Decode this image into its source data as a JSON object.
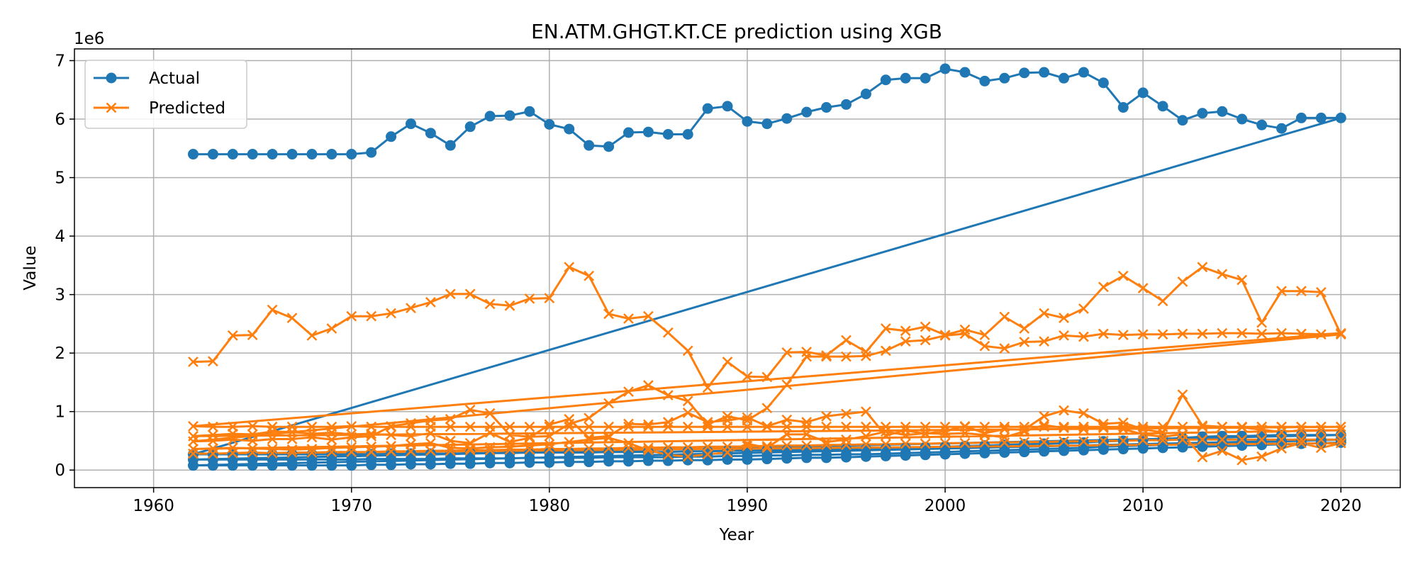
{
  "chart_data": {
    "type": "line",
    "title": "EN.ATM.GHGT.KT.CE prediction using XGB",
    "xlabel": "Year",
    "ylabel": "Value",
    "y_offset_label": "1e6",
    "xlim": [
      1956,
      2023
    ],
    "ylim": [
      -0.3,
      7.2
    ],
    "x_ticks": [
      1960,
      1970,
      1980,
      1990,
      2000,
      2010,
      2020
    ],
    "y_ticks": [
      0,
      1,
      2,
      3,
      4,
      5,
      6,
      7
    ],
    "y_unit_multiplier": 1000000,
    "grid": true,
    "legend_position": "top-left",
    "colors": {
      "actual": "#1f77b4",
      "predicted": "#ff7f0e"
    },
    "legend": [
      {
        "name": "Actual",
        "color": "#1f77b4",
        "marker": "circle"
      },
      {
        "name": "Predicted",
        "color": "#ff7f0e",
        "marker": "x"
      }
    ],
    "x": [
      1962,
      1963,
      1964,
      1965,
      1966,
      1967,
      1968,
      1969,
      1970,
      1971,
      1972,
      1973,
      1974,
      1975,
      1976,
      1977,
      1978,
      1979,
      1980,
      1981,
      1982,
      1983,
      1984,
      1985,
      1986,
      1987,
      1988,
      1989,
      1990,
      1991,
      1992,
      1993,
      1994,
      1995,
      1996,
      1997,
      1998,
      1999,
      2000,
      2001,
      2002,
      2003,
      2004,
      2005,
      2006,
      2007,
      2008,
      2009,
      2010,
      2011,
      2012,
      2013,
      2014,
      2015,
      2016,
      2017,
      2018,
      2019,
      2020
    ],
    "series": [
      {
        "name": "Actual",
        "group": "actual",
        "values": [
          5.4,
          5.4,
          5.4,
          5.4,
          5.4,
          5.4,
          5.4,
          5.4,
          5.4,
          5.43,
          5.7,
          5.92,
          5.76,
          5.55,
          5.87,
          6.05,
          6.06,
          6.13,
          5.91,
          5.83,
          5.55,
          5.53,
          5.77,
          5.78,
          5.74,
          5.74,
          6.18,
          6.22,
          5.96,
          5.92,
          6.01,
          6.12,
          6.2,
          6.25,
          6.43,
          6.67,
          6.7,
          6.7,
          6.86,
          6.8,
          6.65,
          6.7,
          6.79,
          6.8,
          6.7,
          6.8,
          6.62,
          6.2,
          6.45,
          6.22,
          5.98,
          6.1,
          6.13,
          6.0,
          5.9,
          5.84,
          6.02,
          6.02,
          6.02
        ]
      },
      {
        "group": "actual",
        "values": [
          0.27,
          0.27,
          0.27,
          0.27,
          0.27,
          0.27,
          0.27,
          0.27,
          0.27,
          0.27,
          0.28,
          0.28,
          0.28,
          0.28,
          0.29,
          0.29,
          0.29,
          0.3,
          0.3,
          0.3,
          0.3,
          0.31,
          0.31,
          0.31,
          0.31,
          0.32,
          0.32,
          0.33,
          0.33,
          0.34,
          0.34,
          0.35,
          0.35,
          0.36,
          0.36,
          0.37,
          0.38,
          0.39,
          0.4,
          0.41,
          0.42,
          0.43,
          0.44,
          0.45,
          0.46,
          0.47,
          0.49,
          0.5,
          0.52,
          0.53,
          0.55,
          0.57,
          0.58,
          0.58,
          0.59,
          0.6,
          0.6,
          0.6,
          0.6
        ]
      },
      {
        "group": "actual",
        "values": [
          0.18,
          0.18,
          0.18,
          0.18,
          0.18,
          0.18,
          0.18,
          0.18,
          0.18,
          0.19,
          0.19,
          0.19,
          0.19,
          0.2,
          0.2,
          0.2,
          0.2,
          0.21,
          0.21,
          0.21,
          0.21,
          0.22,
          0.22,
          0.22,
          0.22,
          0.23,
          0.23,
          0.24,
          0.24,
          0.25,
          0.25,
          0.26,
          0.26,
          0.27,
          0.27,
          0.28,
          0.29,
          0.3,
          0.31,
          0.32,
          0.33,
          0.34,
          0.35,
          0.36,
          0.37,
          0.38,
          0.4,
          0.41,
          0.42,
          0.43,
          0.44,
          0.45,
          0.46,
          0.47,
          0.48,
          0.49,
          0.5,
          0.51,
          0.52
        ]
      },
      {
        "group": "actual",
        "values": [
          0.08,
          0.08,
          0.08,
          0.08,
          0.08,
          0.08,
          0.08,
          0.08,
          0.08,
          0.09,
          0.09,
          0.1,
          0.1,
          0.11,
          0.11,
          0.12,
          0.12,
          0.13,
          0.13,
          0.14,
          0.14,
          0.15,
          0.15,
          0.16,
          0.16,
          0.17,
          0.17,
          0.18,
          0.18,
          0.19,
          0.2,
          0.21,
          0.21,
          0.22,
          0.23,
          0.24,
          0.25,
          0.26,
          0.27,
          0.28,
          0.29,
          0.3,
          0.31,
          0.32,
          0.33,
          0.34,
          0.35,
          0.36,
          0.37,
          0.38,
          0.39,
          0.4,
          0.41,
          0.42,
          0.43,
          0.44,
          0.45,
          0.46,
          0.47
        ]
      },
      {
        "name": "Predicted",
        "group": "predicted",
        "values": [
          1.85,
          1.86,
          2.3,
          2.31,
          2.74,
          2.6,
          2.3,
          2.42,
          2.63,
          2.63,
          2.68,
          2.77,
          2.87,
          3.01,
          3.01,
          2.84,
          2.81,
          2.93,
          2.94,
          3.47,
          3.32,
          2.67,
          2.59,
          2.63,
          2.35,
          2.04,
          1.41,
          1.85,
          1.6,
          1.59,
          2.01,
          2.02,
          1.96,
          2.22,
          2.02,
          2.42,
          2.38,
          2.45,
          2.31,
          2.4,
          2.31,
          2.62,
          2.42,
          2.68,
          2.6,
          2.76,
          3.13,
          3.32,
          3.11,
          2.89,
          3.22,
          3.47,
          3.35,
          3.25,
          2.52,
          3.06,
          3.06,
          3.04,
          2.32
        ]
      },
      {
        "group": "predicted",
        "values": [
          0.49,
          0.5,
          0.52,
          0.5,
          0.53,
          0.53,
          0.56,
          0.52,
          0.56,
          0.58,
          0.75,
          0.8,
          0.85,
          0.87,
          1.03,
          0.97,
          0.6,
          0.57,
          0.58,
          0.79,
          0.89,
          1.14,
          1.34,
          1.45,
          1.28,
          1.18,
          0.78,
          0.92,
          0.85,
          1.06,
          1.46,
          1.94,
          1.94,
          1.94,
          1.95,
          2.04,
          2.2,
          2.22,
          2.3,
          2.33,
          2.12,
          2.08,
          2.19,
          2.2,
          2.3,
          2.28,
          2.33,
          2.31,
          2.32,
          2.32,
          2.33,
          2.33,
          2.34,
          2.34,
          2.33,
          2.34,
          2.33,
          2.32,
          2.34
        ]
      },
      {
        "group": "predicted",
        "values": [
          0.75,
          0.74,
          0.74,
          0.75,
          0.74,
          0.74,
          0.74,
          0.74,
          0.75,
          0.74,
          0.74,
          0.74,
          0.74,
          0.74,
          0.74,
          0.74,
          0.74,
          0.74,
          0.74,
          0.74,
          0.74,
          0.74,
          0.74,
          0.74,
          0.74,
          0.74,
          0.74,
          0.74,
          0.74,
          0.74,
          0.74,
          0.74,
          0.74,
          0.74,
          0.74,
          0.74,
          0.74,
          0.74,
          0.74,
          0.74,
          0.74,
          0.74,
          0.74,
          0.74,
          0.74,
          0.74,
          0.74,
          0.74,
          0.74,
          0.74,
          0.74,
          0.74,
          0.74,
          0.74,
          0.74,
          0.74,
          0.74,
          0.74,
          0.74
        ]
      },
      {
        "group": "predicted",
        "values": [
          0.58,
          0.6,
          0.62,
          0.61,
          0.66,
          0.65,
          0.62,
          0.64,
          0.61,
          0.62,
          0.6,
          0.58,
          0.63,
          0.5,
          0.46,
          0.64,
          0.48,
          0.55,
          0.78,
          0.87,
          0.55,
          0.58,
          0.79,
          0.78,
          0.82,
          0.98,
          0.82,
          0.85,
          0.9,
          0.75,
          0.86,
          0.82,
          0.92,
          0.96,
          1.0,
          0.59,
          0.68,
          0.62,
          0.67,
          0.75,
          0.63,
          0.7,
          0.69,
          0.92,
          1.02,
          0.97,
          0.79,
          0.81,
          0.7,
          0.64,
          1.29,
          0.76,
          0.74,
          0.73,
          0.69,
          0.65,
          0.68,
          0.68,
          0.68
        ]
      },
      {
        "group": "predicted",
        "values": [
          0.36,
          0.37,
          0.38,
          0.37,
          0.36,
          0.35,
          0.36,
          0.38,
          0.39,
          0.4,
          0.41,
          0.44,
          0.46,
          0.38,
          0.37,
          0.39,
          0.4,
          0.42,
          0.44,
          0.48,
          0.52,
          0.55,
          0.46,
          0.34,
          0.26,
          0.23,
          0.27,
          0.3,
          0.45,
          0.38,
          0.61,
          0.61,
          0.48,
          0.52,
          0.58,
          0.66,
          0.6,
          0.63,
          0.62,
          0.63,
          0.6,
          0.56,
          0.66,
          0.77,
          0.72,
          0.7,
          0.72,
          0.7,
          0.61,
          0.57,
          0.61,
          0.22,
          0.33,
          0.17,
          0.23,
          0.37,
          0.46,
          0.38,
          0.46
        ]
      },
      {
        "group": "predicted",
        "values": [
          0.28,
          0.28,
          0.29,
          0.3,
          0.29,
          0.3,
          0.3,
          0.31,
          0.31,
          0.31,
          0.32,
          0.32,
          0.33,
          0.33,
          0.34,
          0.34,
          0.35,
          0.35,
          0.36,
          0.36,
          0.37,
          0.37,
          0.38,
          0.38,
          0.39,
          0.39,
          0.4,
          0.4,
          0.41,
          0.41,
          0.42,
          0.42,
          0.43,
          0.43,
          0.44,
          0.44,
          0.45,
          0.45,
          0.46,
          0.46,
          0.47,
          0.47,
          0.48,
          0.48,
          0.49,
          0.49,
          0.5,
          0.5,
          0.51,
          0.51,
          0.52,
          0.52,
          0.52,
          0.52,
          0.52,
          0.52,
          0.52,
          0.52,
          0.52
        ]
      }
    ]
  }
}
